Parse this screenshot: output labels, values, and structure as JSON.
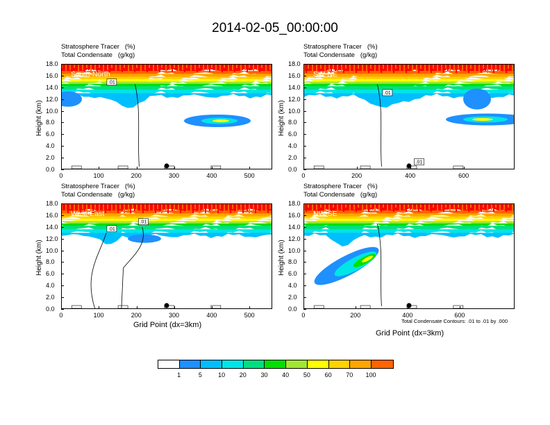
{
  "title": "2014-02-05_00:00:00",
  "panel_header": {
    "line1": "Stratosphere Tracer   (%)",
    "line2": "Total Condensate   (g/kg)"
  },
  "ylabel": "Height (km)",
  "xlabel": "Grid Point (dx=3km)",
  "contour_note": "Total Condensate Contours: .01 to .01 by .000",
  "colorbar": {
    "labels": [
      "1",
      "5",
      "10",
      "20",
      "30",
      "40",
      "50",
      "60",
      "70",
      "100"
    ],
    "colors": [
      "#ffffff",
      "#1e90ff",
      "#00bfff",
      "#00e5e5",
      "#00e080",
      "#00e000",
      "#a0e632",
      "#ffff00",
      "#ffd200",
      "#ffa500",
      "#ff6400",
      "#ff0000"
    ]
  },
  "chart_data": [
    {
      "type": "heatmap",
      "panel_label": "South-North",
      "ylim": [
        0,
        18
      ],
      "y_ticks": [
        "0.0",
        "2.0",
        "4.0",
        "6.0",
        "8.0",
        "10.0",
        "12.0",
        "14.0",
        "16.0",
        "18.0"
      ],
      "xlim": [
        0,
        560
      ],
      "x_ticks": [
        0,
        100,
        200,
        300,
        400,
        500
      ],
      "contour_labels": [
        ".01"
      ],
      "marker_x": 280
    },
    {
      "type": "heatmap",
      "panel_label": "SW-NE",
      "ylim": [
        0,
        18
      ],
      "y_ticks": [
        "0.0",
        "2.0",
        "4.0",
        "6.0",
        "8.0",
        "10.0",
        "12.0",
        "14.0",
        "16.0",
        "18.0"
      ],
      "xlim": [
        0,
        790
      ],
      "x_ticks": [
        0,
        200,
        400,
        600
      ],
      "contour_labels": [
        ".01",
        ".01"
      ],
      "marker_x": 395
    },
    {
      "type": "heatmap",
      "panel_label": "West-East",
      "ylim": [
        0,
        18
      ],
      "y_ticks": [
        "0.0",
        "2.0",
        "4.0",
        "6.0",
        "8.0",
        "10.0",
        "12.0",
        "14.0",
        "16.0",
        "18.0"
      ],
      "xlim": [
        0,
        560
      ],
      "x_ticks": [
        0,
        100,
        200,
        300,
        400,
        500
      ],
      "contour_labels": [
        ".01",
        ".01"
      ],
      "marker_x": 280
    },
    {
      "type": "heatmap",
      "panel_label": "NW-SE",
      "ylim": [
        0,
        18
      ],
      "y_ticks": [
        "0.0",
        "2.0",
        "4.0",
        "6.0",
        "8.0",
        "10.0",
        "12.0",
        "14.0",
        "16.0",
        "18.0"
      ],
      "xlim": [
        0,
        810
      ],
      "x_ticks": [
        0,
        200,
        400,
        600
      ],
      "contour_labels": [],
      "marker_x": 405
    }
  ]
}
